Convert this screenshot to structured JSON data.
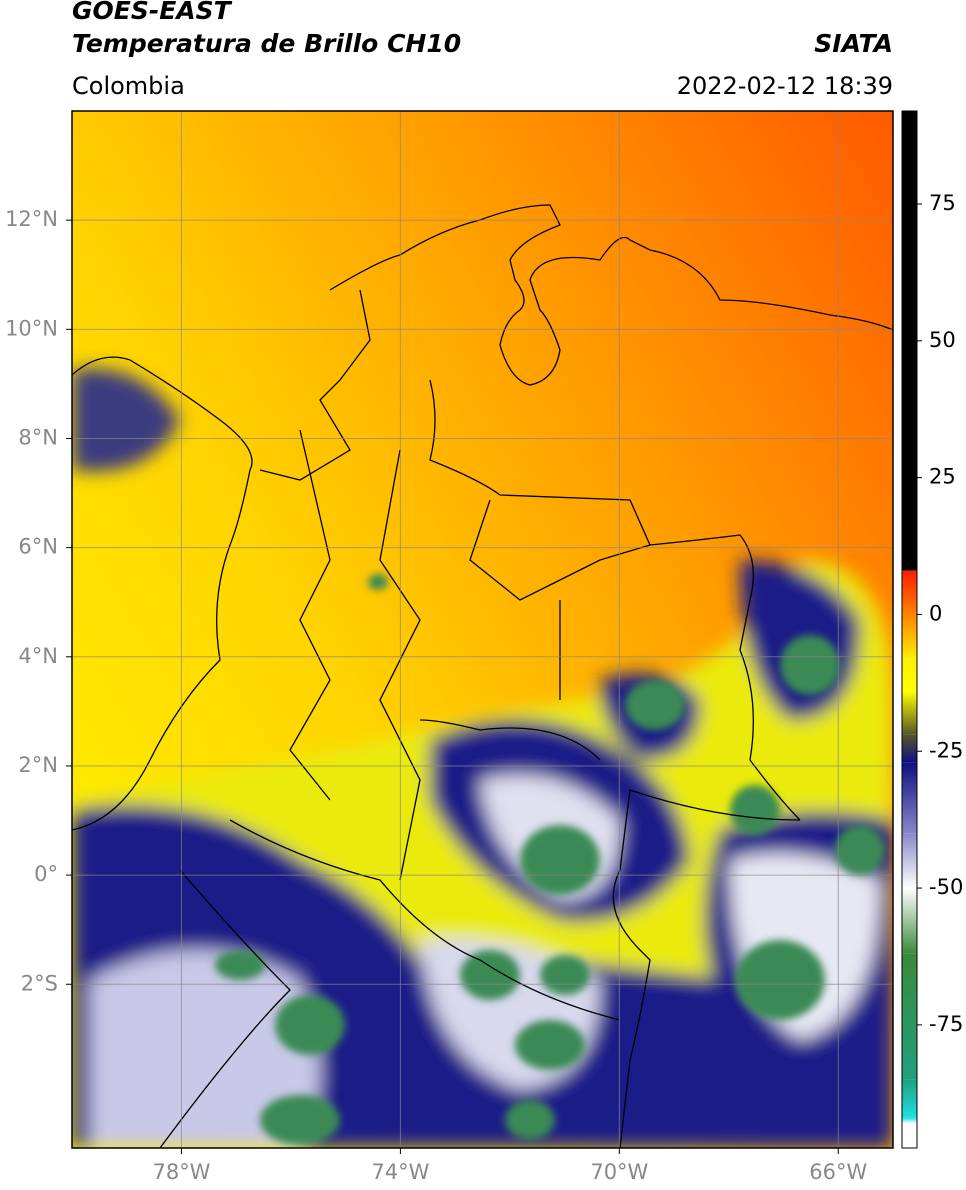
{
  "header": {
    "title": "GOES-EAST",
    "subtitle": "Temperatura de Brillo CH10",
    "source": "SIATA",
    "region": "Colombia",
    "datetime": "2022-02-12 18:39"
  },
  "map": {
    "xlim": [
      -80,
      -65
    ],
    "ylim": [
      -5,
      14
    ],
    "xticks": [
      {
        "value": -78,
        "label": "78°W"
      },
      {
        "value": -74,
        "label": "74°W"
      },
      {
        "value": -70,
        "label": "70°W"
      },
      {
        "value": -66,
        "label": "66°W"
      }
    ],
    "yticks": [
      {
        "value": 12,
        "label": "12°N"
      },
      {
        "value": 10,
        "label": "10°N"
      },
      {
        "value": 8,
        "label": "8°N"
      },
      {
        "value": 6,
        "label": "6°N"
      },
      {
        "value": 4,
        "label": "4°N"
      },
      {
        "value": 2,
        "label": "2°N"
      },
      {
        "value": 0,
        "label": "0°"
      },
      {
        "value": -2,
        "label": "2°S"
      }
    ],
    "grid": true
  },
  "colorbar": {
    "lim": [
      -97.5,
      92
    ],
    "ticks": [
      75,
      50,
      25,
      0,
      -25,
      -50,
      -75
    ],
    "stops": [
      {
        "value": 92,
        "color": "#000000"
      },
      {
        "value": 8,
        "color": "#000000"
      },
      {
        "value": 8,
        "color": "#ff1a00"
      },
      {
        "value": -8,
        "color": "#ffee00"
      },
      {
        "value": -14,
        "color": "#ffff00"
      },
      {
        "value": -22,
        "color": "#55552a"
      },
      {
        "value": -27,
        "color": "#101080"
      },
      {
        "value": -40,
        "color": "#8888c8"
      },
      {
        "value": -50,
        "color": "#ffffff"
      },
      {
        "value": -62,
        "color": "#3a8a3a"
      },
      {
        "value": -85,
        "color": "#20a080"
      },
      {
        "value": -92,
        "color": "#20e0e0"
      },
      {
        "value": -93,
        "color": "#ffffff"
      },
      {
        "value": -97.5,
        "color": "#ffffff"
      }
    ]
  }
}
